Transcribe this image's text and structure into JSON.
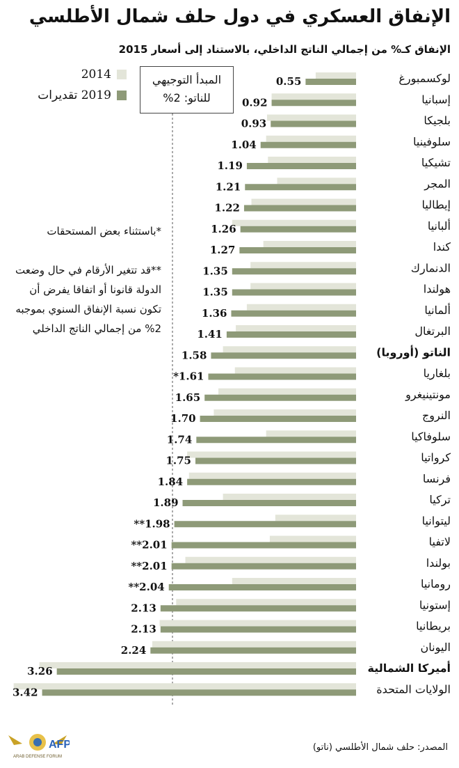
{
  "title": "الإنفاق العسكري في دول حلف شمال الأطلسي",
  "subtitle": "الإنفاق كـ% من إجمالي الناتج الداخلي، بالاستناد إلى أسعار 2015",
  "legend": {
    "series_2014": "2014",
    "series_2019": "2019 تقديرات"
  },
  "guideline": {
    "line1": "المبدأ التوجيهي",
    "line2": "للناتو: 2%",
    "value": 2.0
  },
  "notes": {
    "note1": "*باستثناء بعض المستحقات",
    "note2": "**قد تتغير الأرقام في حال وضعت الدولة قانونا أو اتفاقا يفرض أن تكون نسبة الإنفاق السنوي بموجبه 2% من إجمالي الناتج الداخلي"
  },
  "source": "المصدر: حلف شمال الأطلسي (ناتو)",
  "logo_text": "ARAB DEFENSE FORUM المنتدى العربي للدفاع والتسليح",
  "colors": {
    "bar_2014": "#e3e5d9",
    "bar_2019": "#8e9a78",
    "guide_line": "#555555"
  },
  "chart_data": {
    "type": "bar",
    "orientation": "horizontal",
    "categories": [
      "لوكسمبورغ",
      "إسبانيا",
      "بلجيكا",
      "سلوفينيا",
      "تشيكيا",
      "المجر",
      "إيطاليا",
      "ألبانيا",
      "كندا",
      "الدنمارك",
      "هولندا",
      "ألمانيا",
      "البرتغال",
      "الناتو (أوروبا)",
      "بلغاريا",
      "مونتينيغرو",
      "النروج",
      "سلوفاكيا",
      "كرواتيا",
      "فرنسا",
      "تركيا",
      "ليتوانيا",
      "لاتفيا",
      "بولندا",
      "رومانيا",
      "إستونيا",
      "بريطانيا",
      "اليونان",
      "أميركا الشمالية",
      "الولايات المتحدة"
    ],
    "bold_categories": [
      "الناتو (أوروبا)",
      "أميركا الشمالية"
    ],
    "series": [
      {
        "name": "2014",
        "values": [
          0.44,
          0.92,
          0.97,
          0.98,
          0.96,
          0.86,
          1.14,
          1.35,
          1.01,
          1.15,
          1.15,
          1.19,
          1.31,
          1.45,
          1.32,
          1.5,
          1.55,
          0.98,
          1.84,
          1.82,
          1.45,
          0.88,
          0.94,
          1.86,
          1.35,
          1.96,
          2.14,
          2.22,
          3.45,
          3.73
        ]
      },
      {
        "name": "2019 تقديرات",
        "values": [
          0.55,
          0.92,
          0.93,
          1.04,
          1.19,
          1.21,
          1.22,
          1.26,
          1.27,
          1.35,
          1.35,
          1.36,
          1.41,
          1.58,
          1.61,
          1.65,
          1.7,
          1.74,
          1.75,
          1.84,
          1.89,
          1.98,
          2.01,
          2.01,
          2.04,
          2.13,
          2.13,
          2.24,
          3.26,
          3.42
        ]
      }
    ],
    "value_labels": [
      "0.55",
      "0.92",
      "0.93",
      "1.04",
      "1.19",
      "1.21",
      "1.22",
      "1.26",
      "1.27",
      "1.35",
      "1.35",
      "1.36",
      "1.41",
      "1.58",
      "*1.61",
      "1.65",
      "1.70",
      "1.74",
      "1.75",
      "1.84",
      "1.89",
      "**1.98",
      "**2.01",
      "**2.01",
      "**2.04",
      "2.13",
      "2.13",
      "2.24",
      "3.26",
      "3.42"
    ],
    "xlim": [
      0,
      3.75
    ],
    "grid": false,
    "legend_position": "top-left"
  }
}
